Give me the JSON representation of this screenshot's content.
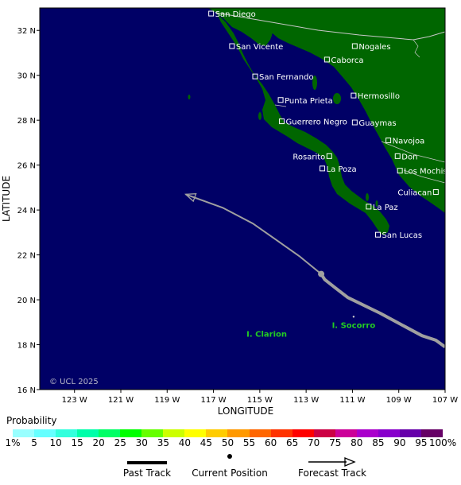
{
  "map": {
    "x_axis_title": "LONGITUDE",
    "y_axis_title": "LATITUDE",
    "lon_ticks": [
      "123 W",
      "121 W",
      "119 W",
      "117 W",
      "115 W",
      "113 W",
      "111 W",
      "109 W",
      "107 W"
    ],
    "lat_ticks": [
      "32 N",
      "30 N",
      "28 N",
      "26 N",
      "24 N",
      "22 N",
      "20 N",
      "18 N",
      "16 N"
    ],
    "copyright": "© UCL 2025",
    "colors": {
      "ocean": "#000066",
      "land": "#006600",
      "track": "#a0a0a0",
      "island_text": "#22cc22"
    },
    "cities": [
      {
        "name": "San Diego",
        "lon": -117.1,
        "lat": 32.75
      },
      {
        "name": "San Vicente",
        "lon": -116.2,
        "lat": 31.3
      },
      {
        "name": "Nogales",
        "lon": -110.9,
        "lat": 31.3
      },
      {
        "name": "Caborca",
        "lon": -112.1,
        "lat": 30.7
      },
      {
        "name": "San Fernando",
        "lon": -115.2,
        "lat": 29.95
      },
      {
        "name": "Hermosillo",
        "lon": -110.95,
        "lat": 29.1
      },
      {
        "name": "Punta Prieta",
        "lon": -114.1,
        "lat": 28.9
      },
      {
        "name": "Guerrero Negro",
        "lon": -114.05,
        "lat": 27.95
      },
      {
        "name": "Guaymas",
        "lon": -110.9,
        "lat": 27.9
      },
      {
        "name": "Navojoa",
        "lon": -109.45,
        "lat": 27.1
      },
      {
        "name": "Rosarito",
        "lon": -112.0,
        "lat": 26.4
      },
      {
        "name": "Don",
        "lon": -109.05,
        "lat": 26.4
      },
      {
        "name": "La Poza",
        "lon": -112.3,
        "lat": 25.85
      },
      {
        "name": "Los Mochis",
        "lon": -108.95,
        "lat": 25.75
      },
      {
        "name": "Culiacan",
        "lon": -107.4,
        "lat": 24.8
      },
      {
        "name": "La Paz",
        "lon": -110.3,
        "lat": 24.15
      },
      {
        "name": "San Lucas",
        "lon": -109.9,
        "lat": 22.9
      }
    ],
    "islands": [
      {
        "name": "I. Clarion",
        "lon": -114.7,
        "lat": 18.35
      },
      {
        "name": "I. Socorro",
        "lon": -110.95,
        "lat": 18.75
      }
    ],
    "past_track": [
      {
        "lon": -107.0,
        "lat": 17.9
      },
      {
        "lon": -107.4,
        "lat": 18.2
      },
      {
        "lon": -108.0,
        "lat": 18.4
      },
      {
        "lon": -108.9,
        "lat": 18.9
      },
      {
        "lon": -109.8,
        "lat": 19.4
      },
      {
        "lon": -110.6,
        "lat": 19.8
      },
      {
        "lon": -111.2,
        "lat": 20.1
      },
      {
        "lon": -111.7,
        "lat": 20.5
      },
      {
        "lon": -112.2,
        "lat": 20.9
      },
      {
        "lon": -112.35,
        "lat": 21.15
      }
    ],
    "current_position": {
      "lon": -112.35,
      "lat": 21.15
    },
    "forecast_track": [
      {
        "lon": -112.35,
        "lat": 21.15
      },
      {
        "lon": -113.3,
        "lat": 21.95
      },
      {
        "lon": -114.4,
        "lat": 22.75
      },
      {
        "lon": -115.3,
        "lat": 23.4
      },
      {
        "lon": -116.6,
        "lat": 24.1
      },
      {
        "lon": -118.2,
        "lat": 24.7
      }
    ]
  },
  "legend": {
    "probability_title": "Probability",
    "probability_labels": [
      "1%",
      "5",
      "10",
      "15",
      "20",
      "25",
      "30",
      "35",
      "40",
      "45",
      "50",
      "55",
      "60",
      "65",
      "70",
      "75",
      "80",
      "85",
      "90",
      "95",
      "100%"
    ],
    "probability_colors": [
      "#99ffff",
      "#66ffff",
      "#33ffdd",
      "#00ffaa",
      "#00ff66",
      "#00ff00",
      "#66ff00",
      "#ccff00",
      "#ffff00",
      "#ffcc00",
      "#ff9900",
      "#ff6600",
      "#ff3300",
      "#ff0000",
      "#cc0044",
      "#cc0099",
      "#aa00cc",
      "#8800cc",
      "#6600aa",
      "#660066"
    ],
    "past_track_label": "Past Track",
    "current_position_label": "Current Position",
    "forecast_track_label": "Forecast Track"
  }
}
